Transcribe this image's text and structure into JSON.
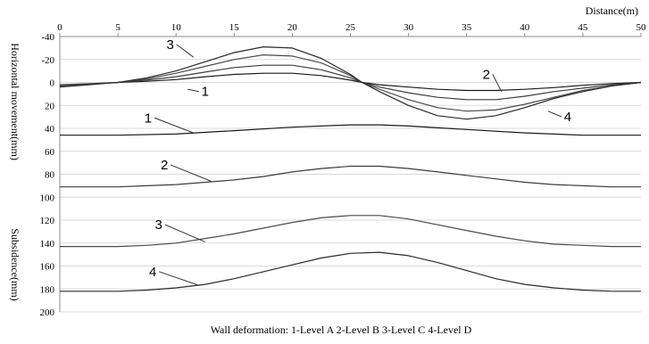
{
  "chart_data": {
    "type": "line",
    "x_axis": {
      "label": "Distance(m)",
      "ticks": [
        0,
        5,
        10,
        15,
        20,
        25,
        30,
        35,
        40,
        45,
        50
      ],
      "range": [
        0,
        50
      ],
      "position": "top"
    },
    "y_axis": {
      "range": [
        -40,
        200
      ],
      "ticks": [
        -40,
        -20,
        0,
        20,
        40,
        60,
        80,
        100,
        120,
        140,
        160,
        180,
        200
      ],
      "inverted": true,
      "labels": [
        "Horizontal movement(mm)",
        "Subsidence(mm)"
      ]
    },
    "grid": "horizontal",
    "legend_text": "Wall deformation: 1-Level A  2-Level B  3-Level C  4-Level D",
    "curve_labels": [
      {
        "text": "1",
        "x": 12.5,
        "y": 11,
        "tx": 11.0,
        "ty": 6
      },
      {
        "text": "3",
        "x": 9.5,
        "y": -30,
        "tx": 11.5,
        "ty": -22
      },
      {
        "text": "2",
        "x": 36.7,
        "y": -4,
        "tx": 38.0,
        "ty": 8
      },
      {
        "text": "4",
        "x": 43.7,
        "y": 33,
        "tx": 42.0,
        "ty": 25
      },
      {
        "text": "1",
        "x": 7.6,
        "y": 34,
        "tx": 11.5,
        "ty": 44
      },
      {
        "text": "2",
        "x": 9.0,
        "y": 75,
        "tx": 13.0,
        "ty": 86
      },
      {
        "text": "3",
        "x": 8.5,
        "y": 127,
        "tx": 12.5,
        "ty": 139
      },
      {
        "text": "4",
        "x": 8.0,
        "y": 168,
        "tx": 12.0,
        "ty": 177
      }
    ],
    "series": [
      {
        "group": "Horizontal movement",
        "level": "1",
        "x": [
          0,
          2.5,
          5,
          7.5,
          10,
          12.5,
          15,
          17.5,
          20,
          22.5,
          25,
          26,
          27.5,
          30,
          32.5,
          35,
          37.5,
          40,
          42.5,
          45,
          47.5,
          50
        ],
        "y": [
          3,
          1.5,
          0,
          -1,
          -2.5,
          -5,
          -7,
          -8,
          -8,
          -6,
          -2,
          0,
          2,
          4,
          6,
          7,
          7,
          6,
          4.5,
          2.5,
          1,
          0
        ]
      },
      {
        "group": "Horizontal movement",
        "level": "2",
        "x": [
          0,
          2.5,
          5,
          7.5,
          10,
          12.5,
          15,
          17.5,
          20,
          22.5,
          25,
          26,
          27.5,
          30,
          32.5,
          35,
          37.5,
          40,
          42.5,
          45,
          47.5,
          50
        ],
        "y": [
          2,
          1,
          0,
          -2,
          -5,
          -9,
          -13,
          -15,
          -15,
          -11,
          -4,
          0,
          4,
          9,
          13,
          15,
          15,
          12,
          8,
          5,
          2,
          0
        ]
      },
      {
        "group": "Horizontal movement",
        "level": "3",
        "x": [
          0,
          2.5,
          5,
          7.5,
          10,
          12.5,
          15,
          17.5,
          20,
          22.5,
          25,
          26,
          27.5,
          30,
          32.5,
          35,
          37.5,
          40,
          42.5,
          45,
          47.5,
          50
        ],
        "y": [
          3,
          1.5,
          0,
          -3,
          -8,
          -14,
          -20,
          -24,
          -23,
          -17,
          -6,
          0,
          6,
          15,
          22,
          25,
          24,
          19,
          13,
          7,
          3,
          0
        ]
      },
      {
        "group": "Horizontal movement",
        "level": "4",
        "x": [
          0,
          2.5,
          5,
          7.5,
          10,
          12.5,
          15,
          17.5,
          20,
          22.5,
          25,
          26,
          27.5,
          30,
          32.5,
          35,
          37.5,
          40,
          42.5,
          45,
          47.5,
          50
        ],
        "y": [
          4,
          2,
          0,
          -4,
          -10,
          -18,
          -26,
          -31,
          -30,
          -21,
          -7,
          0,
          8,
          20,
          29,
          32,
          29,
          22,
          14,
          8,
          3,
          0
        ]
      },
      {
        "group": "Subsidence",
        "level": "1",
        "x": [
          0,
          5,
          10,
          15,
          20,
          25,
          27.5,
          30,
          35,
          40,
          45,
          50
        ],
        "y": [
          46,
          46,
          45,
          42,
          39,
          37,
          37,
          38,
          41,
          44,
          46,
          46
        ]
      },
      {
        "group": "Subsidence",
        "level": "2",
        "x": [
          0,
          2.5,
          5,
          7.5,
          10,
          12.5,
          15,
          17.5,
          20,
          22.5,
          25,
          27.5,
          30,
          32.5,
          35,
          37.5,
          40,
          42.5,
          45,
          47.5,
          50
        ],
        "y": [
          91,
          91,
          91,
          90,
          89,
          87,
          85,
          82,
          78,
          75,
          73,
          73,
          75,
          78,
          81,
          84,
          87,
          89,
          90,
          91,
          91
        ]
      },
      {
        "group": "Subsidence",
        "level": "3",
        "x": [
          0,
          2.5,
          5,
          7.5,
          10,
          12.5,
          15,
          17.5,
          20,
          22.5,
          25,
          27.5,
          30,
          32.5,
          35,
          37.5,
          40,
          42.5,
          45,
          47.5,
          50
        ],
        "y": [
          143,
          143,
          143,
          142,
          140,
          136,
          132,
          127,
          122,
          118,
          116,
          116,
          119,
          124,
          129,
          134,
          138,
          141,
          142,
          143,
          143
        ]
      },
      {
        "group": "Subsidence",
        "level": "4",
        "x": [
          0,
          2.5,
          5,
          7.5,
          10,
          12.5,
          15,
          17.5,
          20,
          22.5,
          25,
          27.5,
          30,
          32.5,
          35,
          37.5,
          40,
          42.5,
          45,
          47.5,
          50
        ],
        "y": [
          182,
          182,
          182,
          181,
          179,
          176,
          171,
          165,
          159,
          153,
          149,
          148,
          151,
          157,
          164,
          171,
          176,
          179,
          181,
          182,
          182
        ]
      }
    ]
  }
}
